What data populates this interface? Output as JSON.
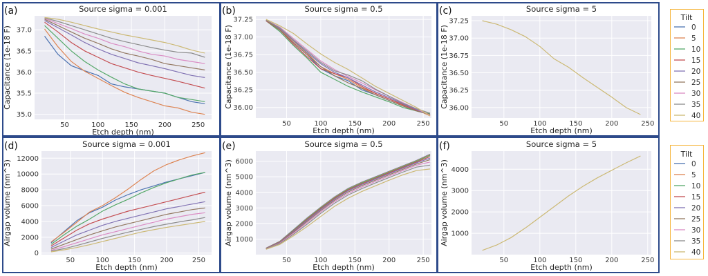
{
  "chart_data": [
    {
      "panel_label": "(a)",
      "type": "line",
      "title": "Source sigma = 0.001",
      "xlabel": "Etch depth (nm)",
      "ylabel": "Capacitance (1e-18 F)",
      "xlim": [
        5,
        270
      ],
      "ylim": [
        34.88,
        37.33
      ],
      "xticks": [
        "50",
        "100",
        "150",
        "200",
        "250"
      ],
      "xtick_values": [
        50,
        100,
        150,
        200,
        250
      ],
      "yticks": [
        "35.0",
        "35.5",
        "36.0",
        "36.5",
        "37.0"
      ],
      "ytick_values": [
        35.0,
        35.5,
        36.0,
        36.5,
        37.0
      ],
      "x": [
        20,
        40,
        60,
        80,
        100,
        120,
        140,
        160,
        180,
        200,
        220,
        240,
        260
      ],
      "series": [
        {
          "name": "0",
          "values": [
            36.85,
            36.42,
            36.15,
            36.03,
            35.92,
            35.72,
            35.65,
            35.6,
            35.55,
            35.5,
            35.4,
            35.3,
            35.25
          ]
        },
        {
          "name": "5",
          "values": [
            37.02,
            36.6,
            36.25,
            36.02,
            35.85,
            35.68,
            35.52,
            35.4,
            35.3,
            35.2,
            35.15,
            35.05,
            35.0
          ]
        },
        {
          "name": "10",
          "values": [
            37.1,
            36.8,
            36.5,
            36.25,
            36.05,
            35.88,
            35.72,
            35.6,
            35.55,
            35.5,
            35.4,
            35.35,
            35.3
          ]
        },
        {
          "name": "15",
          "values": [
            37.18,
            36.95,
            36.7,
            36.5,
            36.35,
            36.2,
            36.1,
            36.0,
            35.92,
            35.85,
            35.78,
            35.7,
            35.62
          ]
        },
        {
          "name": "20",
          "values": [
            37.22,
            37.05,
            36.88,
            36.7,
            36.55,
            36.42,
            36.32,
            36.22,
            36.15,
            36.08,
            36.0,
            35.92,
            35.87
          ]
        },
        {
          "name": "25",
          "values": [
            37.25,
            37.1,
            36.95,
            36.8,
            36.68,
            36.55,
            36.45,
            36.38,
            36.3,
            36.2,
            36.15,
            36.1,
            36.05
          ]
        },
        {
          "name": "30",
          "values": [
            37.27,
            37.15,
            37.03,
            36.9,
            36.8,
            36.68,
            36.6,
            36.5,
            36.42,
            36.38,
            36.3,
            36.25,
            36.2
          ]
        },
        {
          "name": "35",
          "values": [
            37.28,
            37.2,
            37.1,
            37.0,
            36.9,
            36.8,
            36.72,
            36.65,
            36.58,
            36.52,
            36.47,
            36.45,
            36.35
          ]
        },
        {
          "name": "40",
          "values": [
            37.29,
            37.25,
            37.18,
            37.1,
            37.02,
            36.95,
            36.88,
            36.82,
            36.76,
            36.7,
            36.62,
            36.52,
            36.45
          ]
        }
      ]
    },
    {
      "panel_label": "(b)",
      "type": "line",
      "title": "Source sigma = 0.5",
      "xlabel": "Etch depth (nm)",
      "ylabel": "Capacitance (1e-18 F)",
      "xlim": [
        5,
        262
      ],
      "ylim": [
        35.85,
        37.3
      ],
      "xticks": [
        "50",
        "100",
        "150",
        "200",
        "250"
      ],
      "xtick_values": [
        50,
        100,
        150,
        200,
        250
      ],
      "yticks": [
        "36.00",
        "36.25",
        "36.50",
        "36.75",
        "37.00",
        "37.25"
      ],
      "ytick_values": [
        36.0,
        36.25,
        36.5,
        36.75,
        37.0,
        37.25
      ],
      "x": [
        20,
        40,
        60,
        80,
        100,
        120,
        140,
        160,
        180,
        200,
        220,
        240,
        260
      ],
      "series": [
        {
          "name": "0",
          "values": [
            37.23,
            37.1,
            36.92,
            36.75,
            36.55,
            36.45,
            36.38,
            36.25,
            36.18,
            36.1,
            36.02,
            35.95,
            35.9
          ]
        },
        {
          "name": "5",
          "values": [
            37.23,
            37.11,
            36.94,
            36.77,
            36.58,
            36.48,
            36.4,
            36.28,
            36.2,
            36.12,
            36.03,
            35.97,
            35.88
          ]
        },
        {
          "name": "10",
          "values": [
            37.23,
            37.08,
            36.88,
            36.7,
            36.5,
            36.4,
            36.3,
            36.22,
            36.15,
            36.08,
            36.0,
            35.95,
            35.91
          ]
        },
        {
          "name": "15",
          "values": [
            37.23,
            37.1,
            36.9,
            36.72,
            36.55,
            36.48,
            36.42,
            36.3,
            36.2,
            36.12,
            36.04,
            35.96,
            35.9
          ]
        },
        {
          "name": "20",
          "values": [
            37.24,
            37.12,
            36.95,
            36.78,
            36.62,
            36.5,
            36.42,
            36.32,
            36.22,
            36.14,
            36.05,
            35.97,
            35.89
          ]
        },
        {
          "name": "25",
          "values": [
            37.24,
            37.1,
            36.92,
            36.75,
            36.58,
            36.45,
            36.35,
            36.27,
            36.18,
            36.1,
            36.02,
            35.95,
            35.9
          ]
        },
        {
          "name": "30",
          "values": [
            37.24,
            37.14,
            36.98,
            36.82,
            36.66,
            36.54,
            36.44,
            36.35,
            36.25,
            36.16,
            36.07,
            35.98,
            35.89
          ]
        },
        {
          "name": "35",
          "values": [
            37.24,
            37.13,
            36.96,
            36.8,
            36.64,
            36.52,
            36.46,
            36.38,
            36.26,
            36.16,
            36.06,
            35.98,
            35.92
          ]
        },
        {
          "name": "40",
          "values": [
            37.25,
            37.16,
            37.05,
            36.9,
            36.76,
            36.64,
            36.54,
            36.42,
            36.3,
            36.2,
            36.1,
            36.0,
            35.88
          ]
        }
      ]
    },
    {
      "panel_label": "(c)",
      "type": "line",
      "title": "Source sigma = 5",
      "xlabel": "Etch depth (nm)",
      "ylabel": "Capacitance (1e-18 F)",
      "xlim": [
        5,
        255
      ],
      "ylim": [
        35.85,
        37.32
      ],
      "xticks": [
        "50",
        "100",
        "150",
        "200",
        "250"
      ],
      "xtick_values": [
        50,
        100,
        150,
        200,
        250
      ],
      "yticks": [
        "36.00",
        "36.25",
        "36.50",
        "36.75",
        "37.00",
        "37.25"
      ],
      "ytick_values": [
        36.0,
        36.25,
        36.5,
        36.75,
        37.0,
        37.25
      ],
      "x": [
        20,
        40,
        60,
        80,
        100,
        120,
        140,
        160,
        180,
        200,
        220,
        240
      ],
      "series": [
        {
          "name": "40",
          "values": [
            37.25,
            37.2,
            37.12,
            37.02,
            36.88,
            36.7,
            36.58,
            36.43,
            36.29,
            36.15,
            36.0,
            35.9
          ]
        }
      ]
    },
    {
      "panel_label": "(d)",
      "type": "line",
      "title": "Source sigma = 0.001",
      "xlabel": "Etch depth (nm)",
      "ylabel": "Airgap volume (nm^3)",
      "xlim": [
        5,
        270
      ],
      "ylim": [
        -200,
        12900
      ],
      "xticks": [
        "50",
        "100",
        "150",
        "200",
        "250"
      ],
      "xtick_values": [
        50,
        100,
        150,
        200,
        250
      ],
      "yticks": [
        "0",
        "2000",
        "4000",
        "6000",
        "8000",
        "10000",
        "12000"
      ],
      "ytick_values": [
        0,
        2000,
        4000,
        6000,
        8000,
        10000,
        12000
      ],
      "x": [
        20,
        40,
        60,
        80,
        100,
        120,
        140,
        160,
        180,
        200,
        220,
        240,
        260
      ],
      "series": [
        {
          "name": "0",
          "values": [
            1300,
            2700,
            4100,
            5100,
            5800,
            6700,
            7400,
            8000,
            8500,
            9000,
            9400,
            9800,
            10200
          ]
        },
        {
          "name": "5",
          "values": [
            1400,
            2600,
            3900,
            5200,
            6000,
            7000,
            8100,
            9300,
            10400,
            11200,
            11800,
            12300,
            12700
          ]
        },
        {
          "name": "10",
          "values": [
            1100,
            2300,
            3400,
            4300,
            5300,
            6100,
            6800,
            7600,
            8300,
            8900,
            9400,
            9900,
            10200
          ]
        },
        {
          "name": "15",
          "values": [
            900,
            1900,
            2900,
            3700,
            4300,
            4800,
            5300,
            5700,
            6100,
            6500,
            6900,
            7300,
            7700
          ]
        },
        {
          "name": "20",
          "values": [
            700,
            1500,
            2300,
            2900,
            3500,
            4000,
            4400,
            4800,
            5200,
            5600,
            5900,
            6200,
            6500
          ]
        },
        {
          "name": "25",
          "values": [
            500,
            1100,
            1700,
            2300,
            2800,
            3300,
            3700,
            4100,
            4500,
            4900,
            5200,
            5500,
            5700
          ]
        },
        {
          "name": "30",
          "values": [
            350,
            800,
            1300,
            1800,
            2300,
            2700,
            3100,
            3500,
            3900,
            4300,
            4600,
            4900,
            5100
          ]
        },
        {
          "name": "35",
          "values": [
            250,
            550,
            950,
            1400,
            1850,
            2250,
            2650,
            3000,
            3350,
            3650,
            3950,
            4200,
            4500
          ]
        },
        {
          "name": "40",
          "values": [
            150,
            400,
            700,
            1050,
            1450,
            1850,
            2250,
            2650,
            2950,
            3250,
            3500,
            3750,
            4000
          ]
        }
      ]
    },
    {
      "panel_label": "(e)",
      "type": "line",
      "title": "Source sigma = 0.5",
      "xlabel": "Etch depth (nm)",
      "ylabel": "Airgap volume (nm^3)",
      "xlim": [
        5,
        262
      ],
      "ylim": [
        0,
        6650
      ],
      "xticks": [
        "50",
        "100",
        "150",
        "200",
        "250"
      ],
      "xtick_values": [
        50,
        100,
        150,
        200,
        250
      ],
      "yticks": [
        "1000",
        "2000",
        "3000",
        "4000",
        "5000",
        "6000"
      ],
      "ytick_values": [
        1000,
        2000,
        3000,
        4000,
        5000,
        6000
      ],
      "x": [
        20,
        40,
        60,
        80,
        100,
        120,
        140,
        160,
        180,
        200,
        220,
        240,
        260
      ],
      "series": [
        {
          "name": "0",
          "values": [
            420,
            850,
            1600,
            2350,
            3050,
            3700,
            4250,
            4650,
            5000,
            5350,
            5700,
            6050,
            6450
          ]
        },
        {
          "name": "5",
          "values": [
            410,
            840,
            1580,
            2330,
            3030,
            3680,
            4230,
            4630,
            4980,
            5330,
            5680,
            6030,
            6420
          ]
        },
        {
          "name": "10",
          "values": [
            400,
            830,
            1560,
            2300,
            3000,
            3650,
            4200,
            4600,
            4950,
            5300,
            5650,
            6000,
            6380
          ]
        },
        {
          "name": "15",
          "values": [
            390,
            810,
            1520,
            2250,
            2950,
            3600,
            4150,
            4550,
            4900,
            5250,
            5600,
            5950,
            6300
          ]
        },
        {
          "name": "20",
          "values": [
            380,
            790,
            1480,
            2200,
            2900,
            3550,
            4100,
            4500,
            4850,
            5200,
            5550,
            5900,
            6200
          ]
        },
        {
          "name": "25",
          "values": [
            370,
            760,
            1430,
            2130,
            2830,
            3480,
            4020,
            4430,
            4780,
            5130,
            5480,
            5820,
            6100
          ]
        },
        {
          "name": "30",
          "values": [
            360,
            730,
            1370,
            2050,
            2750,
            3400,
            3930,
            4340,
            4700,
            5050,
            5400,
            5740,
            5950
          ]
        },
        {
          "name": "35",
          "values": [
            350,
            700,
            1300,
            1950,
            2650,
            3300,
            3830,
            4240,
            4600,
            4950,
            5300,
            5620,
            5750
          ]
        },
        {
          "name": "40",
          "values": [
            340,
            650,
            1200,
            1800,
            2450,
            3100,
            3620,
            4050,
            4420,
            4780,
            5120,
            5400,
            5500
          ]
        }
      ]
    },
    {
      "panel_label": "(f)",
      "type": "line",
      "title": "Source sigma = 5",
      "xlabel": "Etch depth (nm)",
      "ylabel": "Airgap volume (nm^3)",
      "xlim": [
        5,
        255
      ],
      "ylim": [
        0,
        4850
      ],
      "xticks": [
        "50",
        "100",
        "150",
        "200",
        "250"
      ],
      "xtick_values": [
        50,
        100,
        150,
        200,
        250
      ],
      "yticks": [
        "1000",
        "2000",
        "3000",
        "4000"
      ],
      "ytick_values": [
        1000,
        2000,
        3000,
        4000
      ],
      "x": [
        20,
        40,
        60,
        80,
        100,
        120,
        140,
        160,
        180,
        200,
        220,
        240
      ],
      "series": [
        {
          "name": "40",
          "values": [
            200,
            450,
            800,
            1250,
            1750,
            2250,
            2750,
            3200,
            3600,
            3950,
            4300,
            4620
          ]
        }
      ]
    }
  ],
  "legends": [
    {
      "title": "Tilt",
      "entries": [
        "0",
        "5",
        "10",
        "15",
        "20",
        "25",
        "30",
        "35",
        "40"
      ]
    },
    {
      "title": "Tilt",
      "entries": [
        "0",
        "5",
        "10",
        "15",
        "20",
        "25",
        "30",
        "35",
        "40"
      ]
    }
  ],
  "colors": {
    "plot_bg": "#eaeaf2",
    "grid": "#ffffff",
    "frame": "#2d4a8a",
    "legend_border": "#f5b53a",
    "series": [
      "#4c72b0",
      "#dd8452",
      "#55a868",
      "#c44e52",
      "#8172b3",
      "#937860",
      "#da8bc3",
      "#8c8c8c",
      "#ccb974"
    ]
  }
}
